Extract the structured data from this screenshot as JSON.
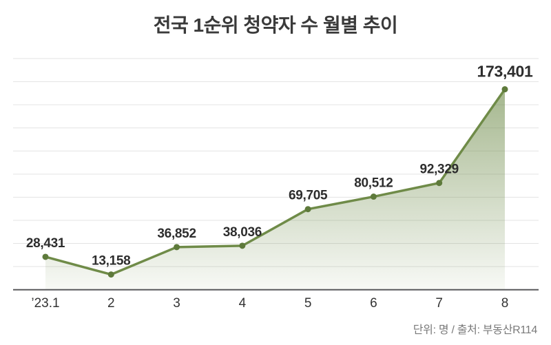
{
  "title": "전국 1순위 청약자 수 월별 추이",
  "footer": {
    "note": "단위: 명 / 출처: 부동산R114"
  },
  "chart_data": {
    "type": "area",
    "title": "전국 1순위 청약자 수 월별 추이",
    "categories": [
      "’23.1",
      "2",
      "3",
      "4",
      "5",
      "6",
      "7",
      "8"
    ],
    "values": [
      28431,
      13158,
      36852,
      38036,
      69705,
      80512,
      92329,
      173401
    ],
    "labels": [
      "28,431",
      "13,158",
      "36,852",
      "38,036",
      "69,705",
      "80,512",
      "92,329",
      "173,401"
    ],
    "emphasized_index": 7,
    "xlabel": "",
    "ylabel": "",
    "ylim": [
      0,
      200000
    ],
    "grid_step": 20000,
    "grid": true,
    "legend": false,
    "unit_label": "단위: 명",
    "source_label": "출처: 부동산R114",
    "colors": {
      "line": "#6f8b48",
      "marker": "#5e7a3b",
      "fill_top": "rgba(110,139,73,0.62)",
      "fill_bottom": "rgba(110,139,73,0.05)",
      "grid": "#e3e3e3",
      "axis": "#58595b",
      "data_label": "#2d2d2d",
      "tick_label": "#333333",
      "title": "#3a3a3a",
      "source": "#7a7a7a"
    }
  }
}
